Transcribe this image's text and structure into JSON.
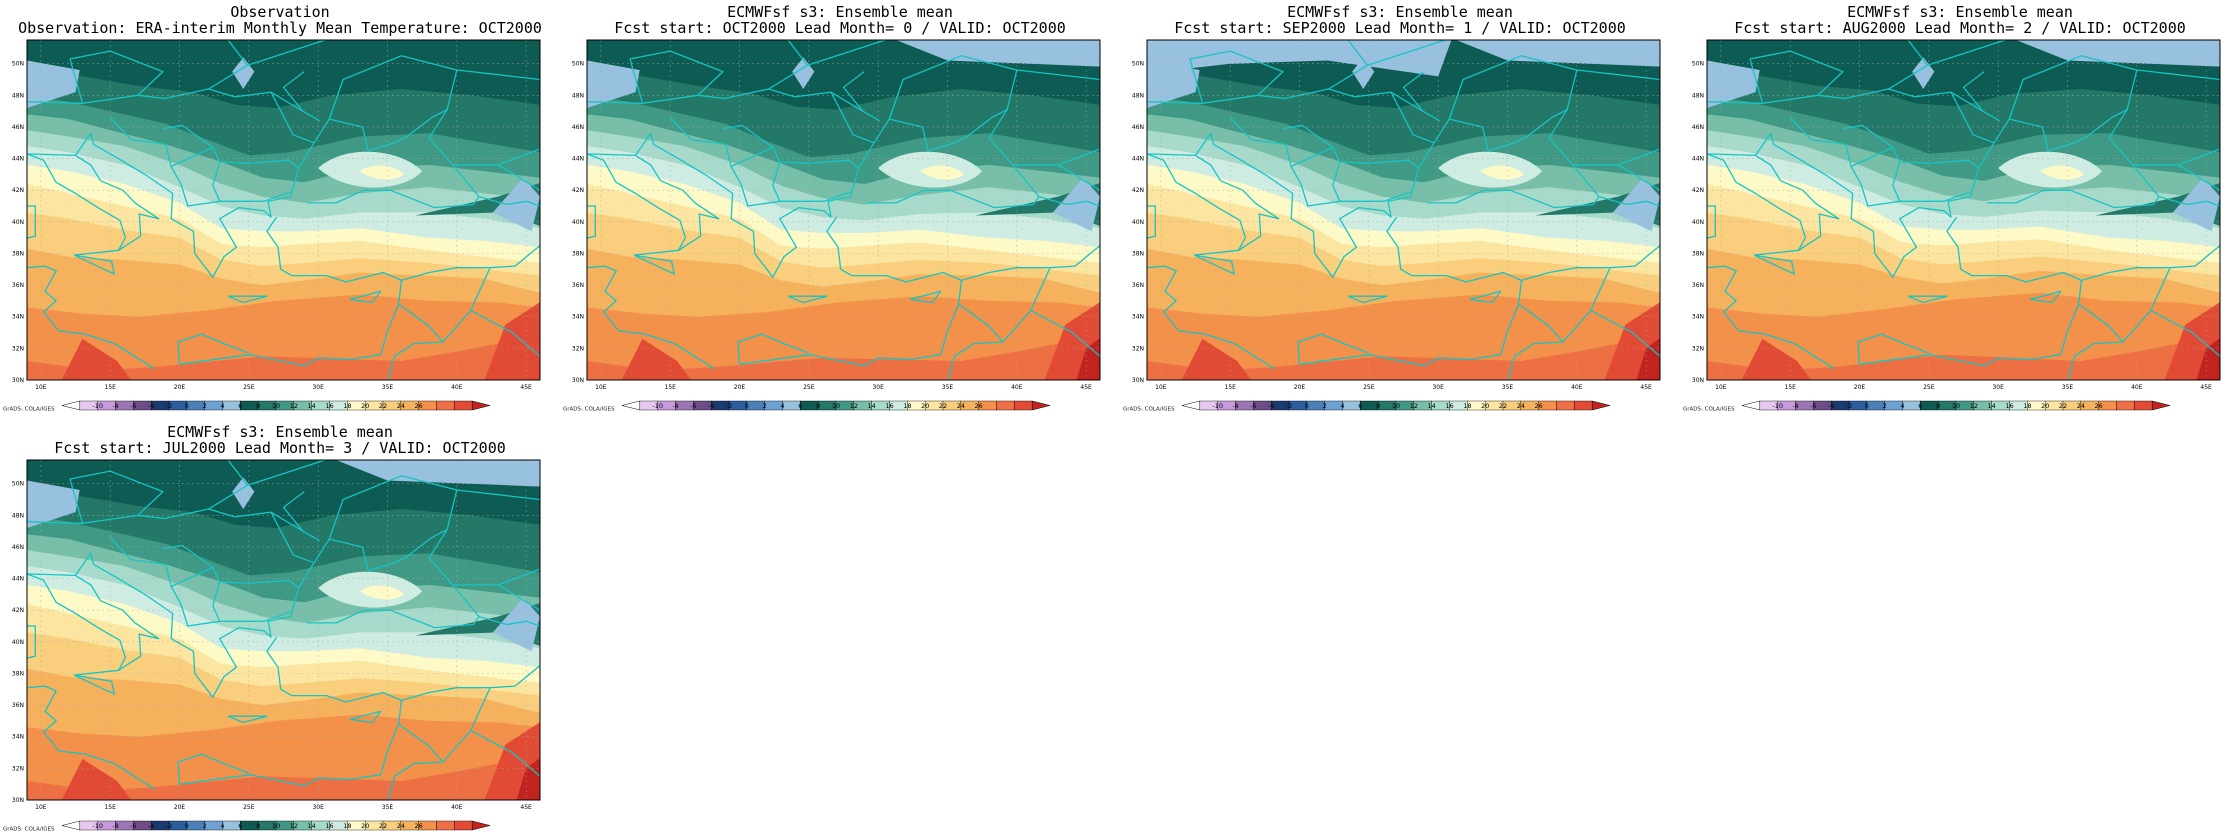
{
  "map_style": {
    "coastline_color": "#17c4c4",
    "palette": [
      "#ffffff",
      "#e6c8ee",
      "#c79adb",
      "#9b77b8",
      "#6d4c87",
      "#1c3a70",
      "#2c5d9d",
      "#4a7fbb",
      "#6da2d3",
      "#97c1df",
      "#0d5b52",
      "#237868",
      "#3f9985",
      "#77bfa9",
      "#a8dacb",
      "#cfece2",
      "#fdfac8",
      "#fbe5a0",
      "#f9cf7d",
      "#f6b15d",
      "#f3914a",
      "#ed7044",
      "#e14b36",
      "#c2231f"
    ],
    "legend_labels": [
      "-10",
      "-8",
      "-6",
      "-4",
      "-2",
      "0",
      "2",
      "4",
      "6",
      "8",
      "10",
      "12",
      "14",
      "16",
      "18",
      "20",
      "22",
      "24",
      "26"
    ],
    "lat_labels": [
      "30N",
      "32N",
      "34N",
      "36N",
      "38N",
      "40N",
      "42N",
      "44N",
      "46N",
      "48N",
      "50N"
    ],
    "lon_labels": [
      "10E",
      "15E",
      "20E",
      "25E",
      "30E",
      "35E",
      "40E",
      "45E"
    ],
    "credit": "GrADS: COLA/IGES"
  },
  "panels": [
    {
      "title": "Observation",
      "subtitle": "Observation: ERA-interim Monthly Mean Temperature: OCT2000",
      "variant": 0
    },
    {
      "title": "ECMWFsf s3: Ensemble mean",
      "subtitle": "Fcst start: OCT2000  Lead Month= 0 / VALID: OCT2000",
      "variant": 1
    },
    {
      "title": "ECMWFsf s3: Ensemble mean",
      "subtitle": "Fcst start: SEP2000  Lead Month= 1 / VALID: OCT2000",
      "variant": 2
    },
    {
      "title": "ECMWFsf s3: Ensemble mean",
      "subtitle": "Fcst start: AUG2000  Lead Month= 2 / VALID: OCT2000",
      "variant": 3
    },
    {
      "title": "ECMWFsf s3: Ensemble mean",
      "subtitle": "Fcst start: JUL2000  Lead Month= 3 / VALID: OCT2000",
      "variant": 4
    }
  ]
}
